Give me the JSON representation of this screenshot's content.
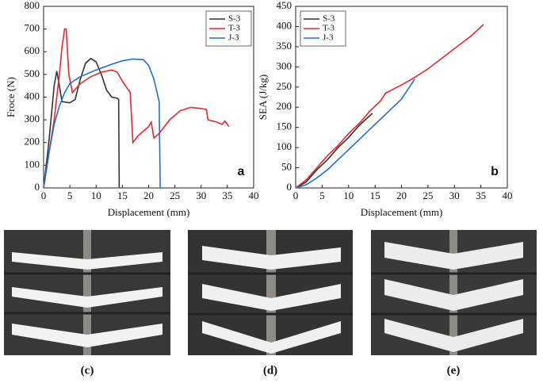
{
  "chart_data": [
    {
      "type": "line",
      "xlabel": "Displacement (mm)",
      "ylabel": "Froce (N)",
      "annotation": "a",
      "xlim": [
        0,
        40
      ],
      "xticks": [
        0,
        5,
        10,
        15,
        20,
        25,
        30,
        35,
        40
      ],
      "ylim": [
        0,
        800
      ],
      "yticks": [
        0,
        100,
        200,
        300,
        400,
        500,
        600,
        700,
        800
      ],
      "legend": "upper right",
      "series": [
        {
          "name": "S-3",
          "color": "#333333",
          "x": [
            0,
            1,
            2,
            2.5,
            3,
            3.5,
            5,
            6,
            7,
            8,
            9,
            10,
            11,
            12,
            13,
            14,
            14.3,
            14.4
          ],
          "values": [
            0,
            200,
            450,
            515,
            450,
            380,
            375,
            390,
            480,
            550,
            570,
            555,
            500,
            430,
            400,
            395,
            390,
            0
          ]
        },
        {
          "name": "T-3",
          "color": "#e8262b",
          "x": [
            0,
            2,
            3,
            3.5,
            4,
            4.3,
            4.8,
            5.5,
            7,
            9,
            11,
            13,
            14,
            15,
            16.5,
            17,
            18,
            19,
            20,
            20.5,
            21,
            22,
            24,
            26,
            28,
            30,
            31,
            31.3,
            33,
            34,
            34.5,
            35,
            35.3
          ],
          "values": [
            0,
            300,
            500,
            620,
            700,
            700,
            500,
            420,
            460,
            490,
            510,
            520,
            510,
            470,
            420,
            200,
            230,
            250,
            270,
            290,
            220,
            240,
            300,
            340,
            355,
            350,
            345,
            300,
            290,
            280,
            295,
            280,
            270
          ]
        },
        {
          "name": "J-3",
          "color": "#1f6fd8",
          "x": [
            0,
            1,
            2,
            3,
            4,
            5,
            7,
            10,
            13,
            15,
            17,
            19,
            20,
            21,
            22,
            22.2
          ],
          "values": [
            0,
            150,
            280,
            360,
            420,
            460,
            490,
            520,
            545,
            560,
            568,
            565,
            540,
            480,
            380,
            0
          ]
        }
      ]
    },
    {
      "type": "line",
      "xlabel": "Displacement (mm)",
      "ylabel": "SEA (J/kg)",
      "annotation": "b",
      "xlim": [
        0,
        40
      ],
      "xticks": [
        0,
        5,
        10,
        15,
        20,
        25,
        30,
        35,
        40
      ],
      "ylim": [
        0,
        450
      ],
      "yticks": [
        0,
        50,
        100,
        150,
        200,
        250,
        300,
        350,
        400,
        450
      ],
      "legend": "upper left",
      "series": [
        {
          "name": "S-3",
          "color": "#333333",
          "x": [
            0,
            2,
            4,
            6,
            8,
            10,
            12,
            14.5
          ],
          "values": [
            0,
            15,
            45,
            70,
            100,
            125,
            155,
            185
          ]
        },
        {
          "name": "T-3",
          "color": "#e8262b",
          "x": [
            0,
            2,
            4,
            6,
            8,
            10,
            12,
            14,
            16,
            17,
            20,
            22,
            25,
            28,
            31,
            33,
            35.5
          ],
          "values": [
            0,
            20,
            50,
            80,
            105,
            135,
            160,
            190,
            215,
            235,
            255,
            270,
            295,
            325,
            355,
            375,
            405
          ]
        },
        {
          "name": "J-3",
          "color": "#1f6fd8",
          "x": [
            0,
            2,
            4,
            6,
            8,
            10,
            12,
            14,
            16,
            18,
            20,
            22,
            22.5
          ],
          "values": [
            0,
            8,
            25,
            45,
            70,
            95,
            120,
            145,
            170,
            195,
            220,
            260,
            270
          ]
        }
      ]
    }
  ],
  "panels": [
    "(c)",
    "(d)",
    "(e)"
  ]
}
